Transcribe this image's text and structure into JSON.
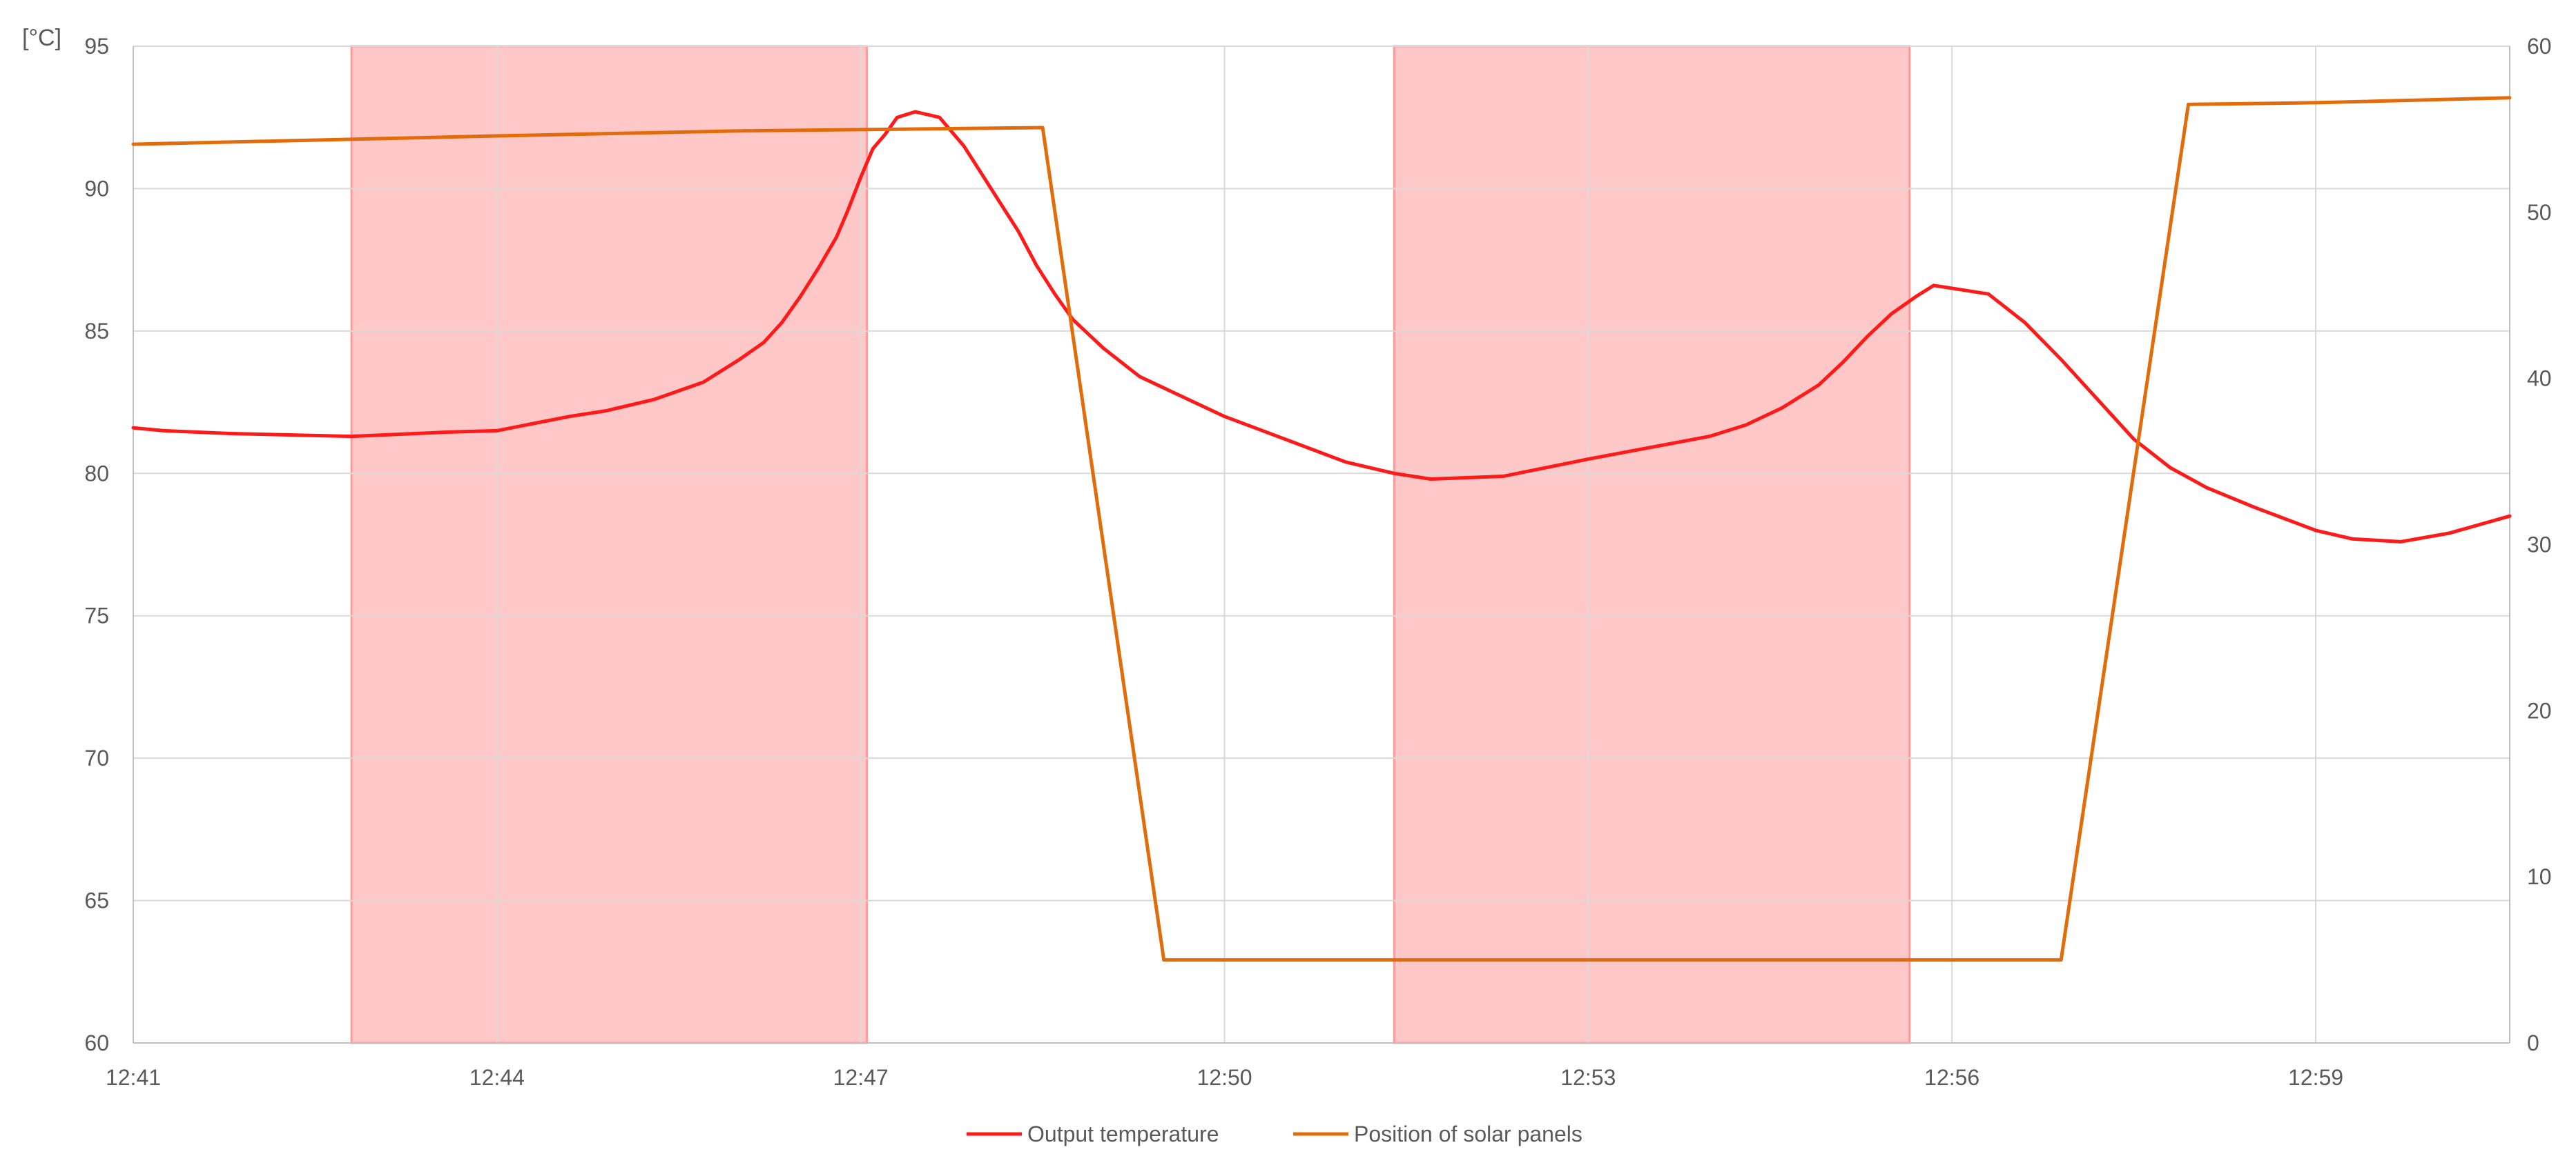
{
  "chart_data": {
    "type": "line",
    "y_unit_label": "[°C]",
    "x_tick_labels": [
      "12:41",
      "12:44",
      "12:47",
      "12:50",
      "12:53",
      "12:56",
      "12:59"
    ],
    "x_range": [
      "12:41",
      "13:00.6"
    ],
    "y_left_range": [
      60,
      95
    ],
    "y_left_ticks": [
      60,
      65,
      70,
      75,
      80,
      85,
      90,
      95
    ],
    "y_right_range": [
      0,
      60
    ],
    "y_right_ticks": [
      0,
      10,
      20,
      30,
      40,
      50,
      60
    ],
    "grid": true,
    "legend_position": "bottom",
    "highlight_bands": [
      {
        "start": "12:42.8",
        "end": "12:47.05",
        "color": "#ff9a9a"
      },
      {
        "start": "12:51.4",
        "end": "12:55.65",
        "color": "#ff9a9a"
      }
    ],
    "series": [
      {
        "name": "Output temperature",
        "axis": "left",
        "color": "#ff1a1a",
        "points": [
          [
            "12:41.0",
            81.6
          ],
          [
            "12:41.25",
            81.5
          ],
          [
            "12:41.8",
            81.4
          ],
          [
            "12:42.8",
            81.3
          ],
          [
            "12:43.6",
            81.45
          ],
          [
            "12:44.0",
            81.5
          ],
          [
            "12:44.3",
            81.75
          ],
          [
            "12:44.6",
            82.0
          ],
          [
            "12:44.9",
            82.2
          ],
          [
            "12:45.3",
            82.6
          ],
          [
            "12:45.7",
            83.2
          ],
          [
            "12:46.0",
            84.0
          ],
          [
            "12:46.2",
            84.6
          ],
          [
            "12:46.35",
            85.3
          ],
          [
            "12:46.5",
            86.2
          ],
          [
            "12:46.65",
            87.2
          ],
          [
            "12:46.8",
            88.3
          ],
          [
            "12:46.9",
            89.3
          ],
          [
            "12:47.0",
            90.4
          ],
          [
            "12:47.1",
            91.4
          ],
          [
            "12:47.2",
            91.9
          ],
          [
            "12:47.3",
            92.5
          ],
          [
            "12:47.45",
            92.7
          ],
          [
            "12:47.65",
            92.5
          ],
          [
            "12:47.85",
            91.5
          ],
          [
            "12:48.0",
            90.5
          ],
          [
            "12:48.15",
            89.5
          ],
          [
            "12:48.3",
            88.5
          ],
          [
            "12:48.45",
            87.3
          ],
          [
            "12:48.6",
            86.3
          ],
          [
            "12:48.75",
            85.4
          ],
          [
            "12:49.0",
            84.4
          ],
          [
            "12:49.3",
            83.4
          ],
          [
            "12:49.6",
            82.8
          ],
          [
            "12:50.0",
            82.0
          ],
          [
            "12:50.5",
            81.2
          ],
          [
            "12:51.0",
            80.4
          ],
          [
            "12:51.4",
            80.0
          ],
          [
            "12:51.7",
            79.8
          ],
          [
            "12:52.3",
            79.9
          ],
          [
            "12:53.0",
            80.5
          ],
          [
            "12:53.5",
            80.9
          ],
          [
            "12:54.0",
            81.3
          ],
          [
            "12:54.3",
            81.7
          ],
          [
            "12:54.6",
            82.3
          ],
          [
            "12:54.9",
            83.1
          ],
          [
            "12:55.1",
            83.9
          ],
          [
            "12:55.3",
            84.8
          ],
          [
            "12:55.5",
            85.6
          ],
          [
            "12:55.7",
            86.2
          ],
          [
            "12:55.85",
            86.6
          ],
          [
            "12:56.3",
            86.3
          ],
          [
            "12:56.6",
            85.3
          ],
          [
            "12:56.9",
            84.0
          ],
          [
            "12:57.2",
            82.6
          ],
          [
            "12:57.5",
            81.2
          ],
          [
            "12:57.8",
            80.2
          ],
          [
            "12:58.1",
            79.5
          ],
          [
            "12:58.5",
            78.8
          ],
          [
            "12:59.0",
            78.0
          ],
          [
            "12:59.3",
            77.7
          ],
          [
            "12:59.7",
            77.6
          ],
          [
            "13:00.1",
            77.9
          ],
          [
            "13:00.6",
            78.5
          ]
        ]
      },
      {
        "name": "Position of solar panels",
        "axis": "right",
        "color": "#e36c0a",
        "points": [
          [
            "12:41.0",
            54.1
          ],
          [
            "12:42.8",
            54.4
          ],
          [
            "12:44.0",
            54.6
          ],
          [
            "12:46.0",
            54.9
          ],
          [
            "12:48.5",
            55.1
          ],
          [
            "12:49.5",
            5.0
          ],
          [
            "12:56.9",
            5.0
          ],
          [
            "12:57.95",
            56.5
          ],
          [
            "12:59.0",
            56.6
          ],
          [
            "13:00.6",
            56.9
          ]
        ]
      }
    ]
  }
}
